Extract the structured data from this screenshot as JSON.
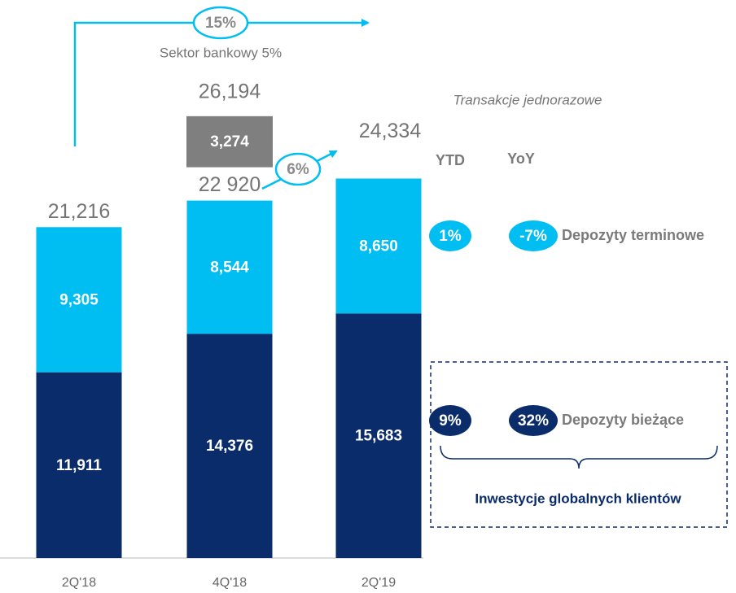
{
  "chart_data": {
    "type": "bar",
    "categories": [
      "2Q'18",
      "4Q'18",
      "2Q'19"
    ],
    "series": [
      {
        "name": "Depozyty bieżące",
        "color": "#0b2c6b",
        "values": [
          11911,
          14376,
          15683
        ],
        "value_labels": [
          "11,911",
          "14,376",
          "15,683"
        ],
        "ytd": {
          "value": 9,
          "label": "9%"
        },
        "yoy": {
          "value": 32,
          "label": "32%"
        }
      },
      {
        "name": "Depozyty terminowe",
        "color": "#00bdf2",
        "values": [
          9305,
          8544,
          8650
        ],
        "value_labels": [
          "9,305",
          "8,544",
          "8,650"
        ],
        "ytd": {
          "value": 1,
          "label": "1%"
        },
        "yoy": {
          "value": -7,
          "label": "-7%"
        }
      },
      {
        "name": "Transakcje jednorazowe",
        "color": "#7f7f7f",
        "values": [
          null,
          3274,
          null
        ],
        "value_labels": [
          null,
          "3,274",
          null
        ]
      }
    ],
    "totals": [
      21216,
      22920,
      24334
    ],
    "total_labels": [
      "21,216",
      "22 920",
      "24,334"
    ],
    "grand_total": {
      "value": 26194,
      "label": "26,194"
    },
    "growth": {
      "value": 15,
      "label": "15%"
    },
    "sector_note": "Sektor bankowy 5%",
    "growth_4q": {
      "value": 6,
      "label": "6%"
    },
    "columns": [
      "YTD",
      "YoY"
    ],
    "group_label": "Inwestycje globalnych klientów",
    "ylim": [
      0,
      35000
    ]
  }
}
